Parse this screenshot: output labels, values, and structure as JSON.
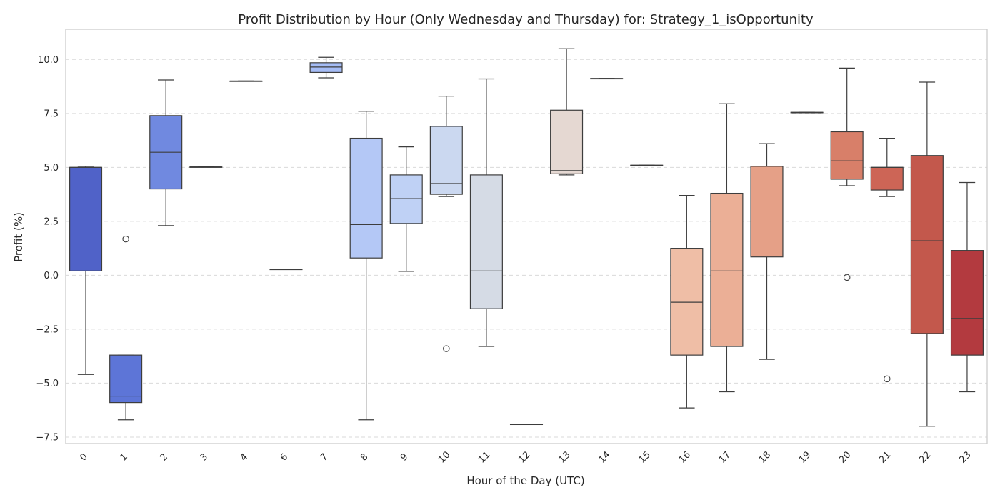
{
  "chart_data": {
    "type": "box",
    "title": "Profit Distribution by Hour (Only Wednesday and Thursday) for: Strategy_1_isOpportunity",
    "xlabel": "Hour of the Day (UTC)",
    "ylabel": "Profit (%)",
    "ylim": [
      -7.8,
      11.4
    ],
    "yticks": [
      -7.5,
      -5.0,
      -2.5,
      0.0,
      2.5,
      5.0,
      7.5,
      10.0
    ],
    "ytick_labels": [
      "−7.5",
      "−5.0",
      "−2.5",
      "0.0",
      "2.5",
      "5.0",
      "7.5",
      "10.0"
    ],
    "grid": true,
    "categories": [
      "0",
      "1",
      "2",
      "3",
      "4",
      "6",
      "7",
      "8",
      "9",
      "10",
      "11",
      "12",
      "13",
      "14",
      "15",
      "16",
      "17",
      "18",
      "19",
      "20",
      "21",
      "22",
      "23"
    ],
    "boxes": [
      {
        "hour": "0",
        "whislo": -4.6,
        "q1": 0.2,
        "med": 5.0,
        "q3": 5.0,
        "whishi": 5.05,
        "fliers": [],
        "color": "#5062c8"
      },
      {
        "hour": "1",
        "whislo": -6.7,
        "q1": -5.9,
        "med": -5.6,
        "q3": -3.7,
        "whishi": -3.7,
        "fliers": [
          1.68
        ],
        "color": "#5d75d7"
      },
      {
        "hour": "2",
        "whislo": 2.3,
        "q1": 4.0,
        "med": 5.7,
        "q3": 7.4,
        "whishi": 9.05,
        "fliers": [],
        "color": "#7089e0"
      },
      {
        "hour": "3",
        "whislo": 5.02,
        "q1": 5.02,
        "med": 5.02,
        "q3": 5.02,
        "whishi": 5.02,
        "fliers": [],
        "color": "#7f97e9"
      },
      {
        "hour": "4",
        "whislo": 9.0,
        "q1": 9.0,
        "med": 9.0,
        "q3": 9.0,
        "whishi": 9.0,
        "fliers": [],
        "color": "#8ea6ef"
      },
      {
        "hour": "6",
        "whislo": 0.28,
        "q1": 0.28,
        "med": 0.28,
        "q3": 0.28,
        "whishi": 0.28,
        "fliers": [],
        "color": "#9db4f4"
      },
      {
        "hour": "7",
        "whislo": 9.15,
        "q1": 9.4,
        "med": 9.65,
        "q3": 9.85,
        "whishi": 10.1,
        "fliers": [],
        "color": "#a5bcf5"
      },
      {
        "hour": "8",
        "whislo": -6.7,
        "q1": 0.8,
        "med": 2.35,
        "q3": 6.35,
        "whishi": 7.6,
        "fliers": [],
        "color": "#b4c8f6"
      },
      {
        "hour": "9",
        "whislo": 0.18,
        "q1": 2.4,
        "med": 3.55,
        "q3": 4.65,
        "whishi": 5.95,
        "fliers": [],
        "color": "#bfd1f5"
      },
      {
        "hour": "10",
        "whislo": 3.65,
        "q1": 3.75,
        "med": 4.25,
        "q3": 6.9,
        "whishi": 8.3,
        "fliers": [
          -3.4
        ],
        "color": "#cbd8f0"
      },
      {
        "hour": "11",
        "whislo": -3.3,
        "q1": -1.55,
        "med": 0.2,
        "q3": 4.65,
        "whishi": 9.1,
        "fliers": [],
        "color": "#d5dbe5"
      },
      {
        "hour": "12",
        "whislo": -6.9,
        "q1": -6.9,
        "med": -6.9,
        "q3": -6.9,
        "whishi": -6.9,
        "fliers": [],
        "color": "#dcdde0"
      },
      {
        "hour": "13",
        "whislo": 4.65,
        "q1": 4.7,
        "med": 4.85,
        "q3": 7.65,
        "whishi": 10.5,
        "fliers": [],
        "color": "#e5d8d2"
      },
      {
        "hour": "14",
        "whislo": 9.12,
        "q1": 9.12,
        "med": 9.12,
        "q3": 9.12,
        "whishi": 9.12,
        "fliers": [],
        "color": "#ecd3c6"
      },
      {
        "hour": "15",
        "whislo": 5.1,
        "q1": 5.1,
        "med": 5.1,
        "q3": 5.1,
        "whishi": 5.1,
        "fliers": [],
        "color": "#f0cbb9"
      },
      {
        "hour": "16",
        "whislo": -6.15,
        "q1": -3.7,
        "med": -1.25,
        "q3": 1.25,
        "whishi": 3.7,
        "fliers": [],
        "color": "#efbea6"
      },
      {
        "hour": "17",
        "whislo": -5.4,
        "q1": -3.3,
        "med": 0.2,
        "q3": 3.8,
        "whishi": 7.95,
        "fliers": [],
        "color": "#ebaf96"
      },
      {
        "hour": "18",
        "whislo": -3.9,
        "q1": 0.85,
        "med": 5.05,
        "q3": 5.05,
        "whishi": 6.1,
        "fliers": [],
        "color": "#e5a087"
      },
      {
        "hour": "19",
        "whislo": 7.55,
        "q1": 7.55,
        "med": 7.55,
        "q3": 7.55,
        "whishi": 7.55,
        "fliers": [],
        "color": "#de8d74"
      },
      {
        "hour": "20",
        "whislo": 4.15,
        "q1": 4.45,
        "med": 5.3,
        "q3": 6.65,
        "whishi": 9.6,
        "fliers": [
          -0.1
        ],
        "color": "#d87f69"
      },
      {
        "hour": "21",
        "whislo": 3.65,
        "q1": 3.95,
        "med": 5.0,
        "q3": 5.0,
        "whishi": 6.35,
        "fliers": [
          -4.8
        ],
        "color": "#cd6556"
      },
      {
        "hour": "22",
        "whislo": -7.0,
        "q1": -2.7,
        "med": 1.6,
        "q3": 5.55,
        "whishi": 8.95,
        "fliers": [],
        "color": "#c3584c"
      },
      {
        "hour": "23",
        "whislo": -5.4,
        "q1": -3.7,
        "med": -2.0,
        "q3": 1.15,
        "whishi": 4.3,
        "fliers": [],
        "color": "#b33a3f"
      }
    ]
  }
}
